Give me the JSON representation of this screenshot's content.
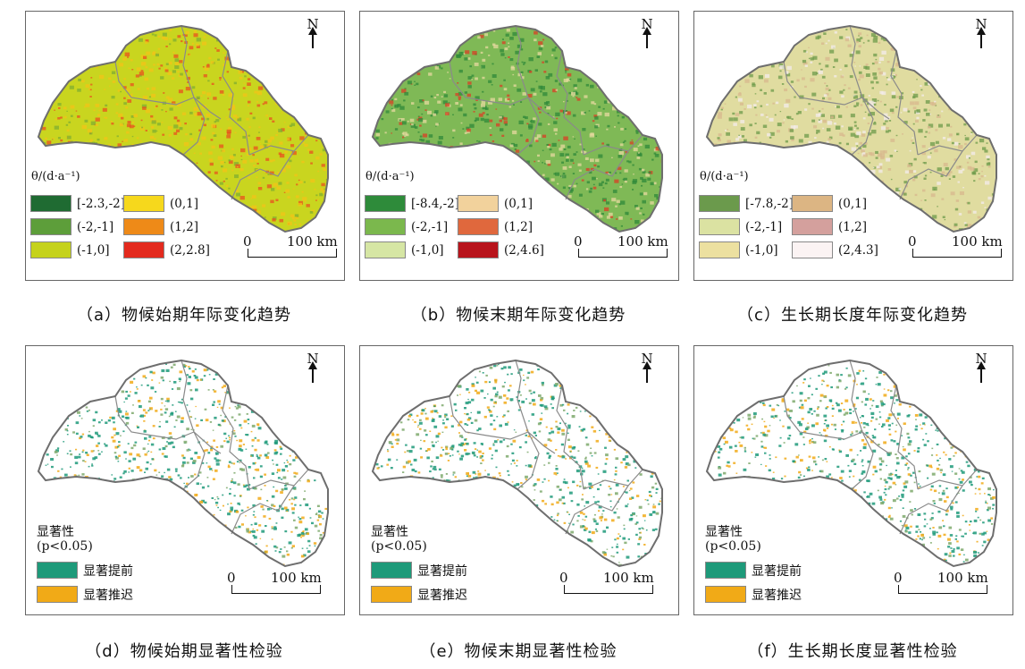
{
  "north_label": "N",
  "scale_zero": "0",
  "scale_label": "100 km",
  "top_panels": [
    {
      "caption": "（a）物候始期年际变化趋势",
      "legend_title": "θ/(d·a⁻¹)",
      "legend": [
        {
          "label": "[-2.3,-2]",
          "color": "#1f6b32"
        },
        {
          "label": "(0,1]",
          "color": "#f6d81c"
        },
        {
          "label": "(-2,-1]",
          "color": "#5d9e3a"
        },
        {
          "label": "(1,2]",
          "color": "#ee8a18"
        },
        {
          "label": "(-1,0]",
          "color": "#c5d21c"
        },
        {
          "label": "(2,2.8]",
          "color": "#e32a1e"
        }
      ],
      "map_colors": {
        "base": "#c9d51f",
        "spots1": "#f2c318",
        "spots2": "#e8501f",
        "spots3": "#7fae32"
      }
    },
    {
      "caption": "（b）物候末期年际变化趋势",
      "legend_title": "θ/(d·a⁻¹)",
      "legend": [
        {
          "label": "[-8.4,-2]",
          "color": "#2e8b3a"
        },
        {
          "label": "(0,1]",
          "color": "#f2d29c"
        },
        {
          "label": "(-2,-1]",
          "color": "#7bb84d"
        },
        {
          "label": "(1,2]",
          "color": "#e0683d"
        },
        {
          "label": "(-1,0]",
          "color": "#d6e6a4"
        },
        {
          "label": "(2,4.6]",
          "color": "#b8141c"
        }
      ],
      "map_colors": {
        "base": "#7fb956",
        "spots1": "#2f8a3a",
        "spots2": "#e7d9a0",
        "spots3": "#d93f25"
      }
    },
    {
      "caption": "（c）生长期长度年际变化趋势",
      "legend_title": "θ/(d·a⁻¹)",
      "legend": [
        {
          "label": "[-7.8,-2]",
          "color": "#6b9a4c"
        },
        {
          "label": "(0,1]",
          "color": "#dcb583"
        },
        {
          "label": "(-2,-1]",
          "color": "#dbe2a2"
        },
        {
          "label": "(1,2]",
          "color": "#d4a09d"
        },
        {
          "label": "(-1,0]",
          "color": "#ece0a0"
        },
        {
          "label": "(2,4.3]",
          "color": "#fbf3f3"
        }
      ],
      "map_colors": {
        "base": "#e0dca0",
        "spots1": "#6e9b4b",
        "spots2": "#d8b88d",
        "spots3": "#f4ecec"
      }
    }
  ],
  "bottom_panels": [
    {
      "caption": "（d）物候始期显著性检验",
      "sig_title": "显著性",
      "sig_p": "(p<0.05)",
      "legend": [
        {
          "label": "显著提前",
          "color": "#1e9a7a"
        },
        {
          "label": "显著推迟",
          "color": "#f1aa17"
        }
      ]
    },
    {
      "caption": "（e）物候末期显著性检验",
      "sig_title": "显著性",
      "sig_p": "(p<0.05)",
      "legend": [
        {
          "label": "显著提前",
          "color": "#1e9a7a"
        },
        {
          "label": "显著推迟",
          "color": "#f1aa17"
        }
      ]
    },
    {
      "caption": "（f）生长期长度显著性检验",
      "sig_title": "显著性",
      "sig_p": "(p<0.05)",
      "legend": [
        {
          "label": "显著提前",
          "color": "#1e9a7a"
        },
        {
          "label": "显著推迟",
          "color": "#f1aa17"
        }
      ]
    }
  ]
}
